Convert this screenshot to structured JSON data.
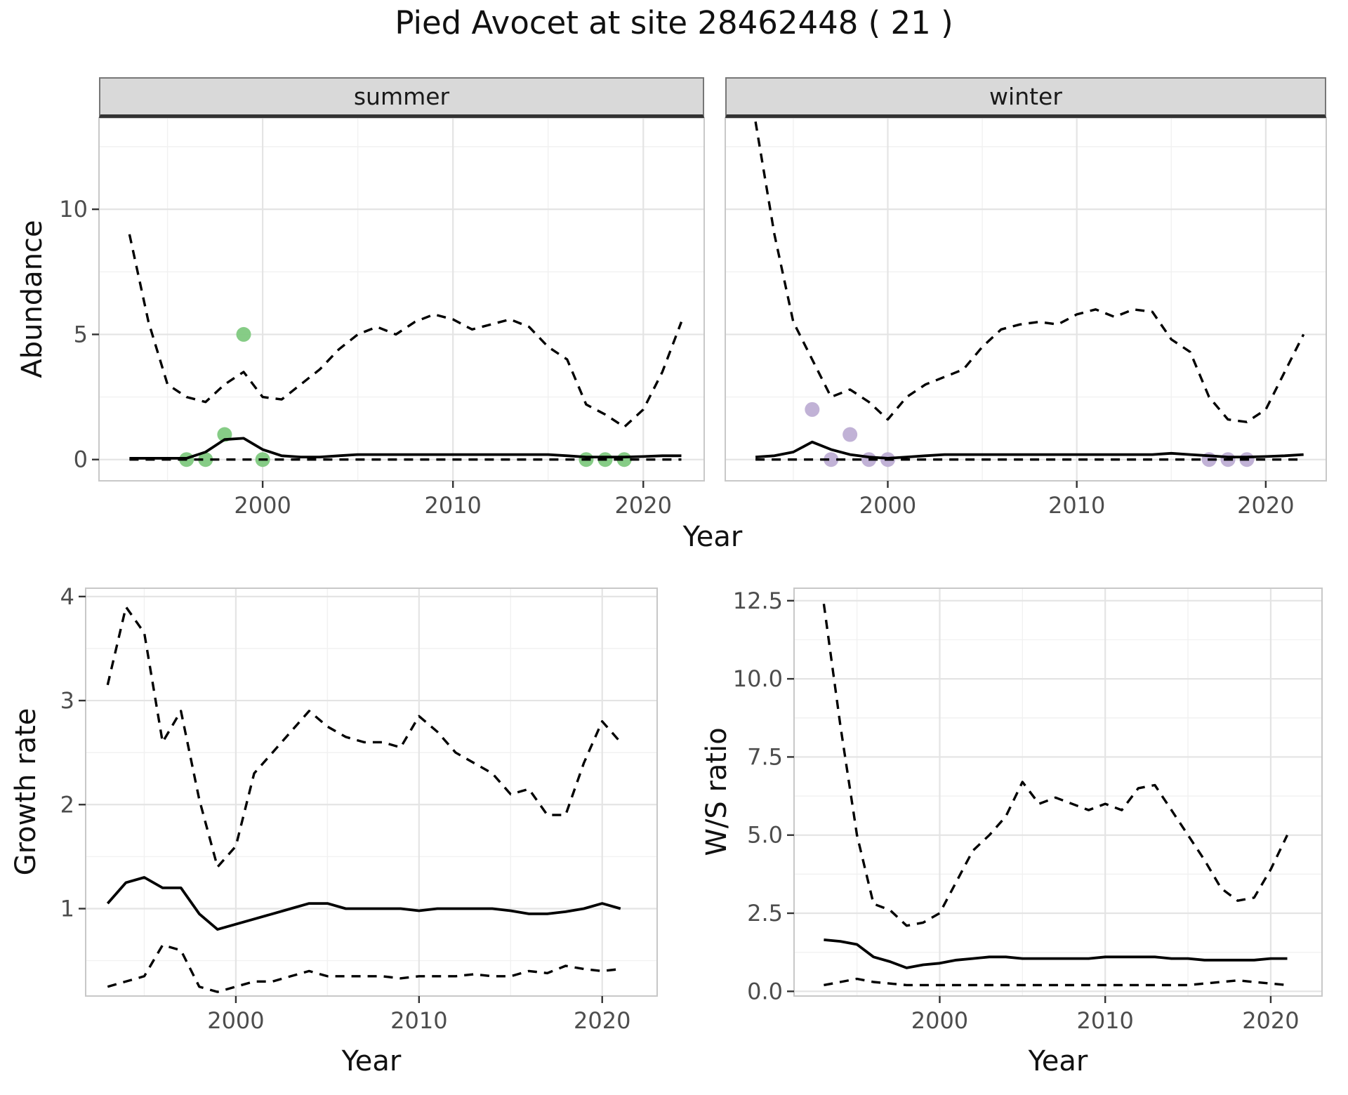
{
  "title": "Pied Avocet at site 28462448 ( 21 )",
  "colors": {
    "summer_points": "#7FC97F",
    "winter_points": "#BEAED4",
    "line": "#000000",
    "grid_major": "#E4E4E4",
    "grid_minor": "#F1F1F1",
    "strip_bg": "#D9D9D9",
    "strip_border": "#333333",
    "panel_border": "#C8C8C8",
    "panel_bg": "#FFFFFF",
    "tick_text": "#4D4D4D",
    "tick_mark": "#333333"
  },
  "chart_data": [
    {
      "id": "abundance-summer",
      "type": "line+scatter",
      "facet": "summer",
      "xlabel": "Year",
      "ylabel": "Abundance",
      "xlim": [
        1991.4,
        2023.2
      ],
      "ylim": [
        -0.85,
        13.65
      ],
      "xticks": [
        2000,
        2010,
        2020
      ],
      "xtick_labels": [
        "2000",
        "2010",
        "2020"
      ],
      "xminor": [
        1995,
        2005,
        2015
      ],
      "yticks": [
        0,
        5,
        10
      ],
      "ytick_labels": [
        "0",
        "5",
        "10"
      ],
      "yminor": [
        2.5,
        7.5,
        12.5
      ],
      "x": [
        1993,
        1994,
        1995,
        1996,
        1997,
        1998,
        1999,
        2000,
        2001,
        2002,
        2003,
        2004,
        2005,
        2006,
        2007,
        2008,
        2009,
        2010,
        2011,
        2012,
        2013,
        2014,
        2015,
        2016,
        2017,
        2018,
        2019,
        2020,
        2021,
        2022
      ],
      "series": [
        {
          "name": "upper_ci",
          "style": "dashed",
          "values": [
            9.0,
            5.5,
            3.0,
            2.5,
            2.3,
            3.0,
            3.5,
            2.5,
            2.4,
            3.0,
            3.6,
            4.4,
            5.0,
            5.3,
            5.0,
            5.5,
            5.8,
            5.6,
            5.2,
            5.4,
            5.6,
            5.3,
            4.5,
            4.0,
            2.2,
            1.8,
            1.3,
            2.0,
            3.5,
            5.5
          ]
        },
        {
          "name": "median",
          "style": "solid",
          "values": [
            0.05,
            0.05,
            0.05,
            0.05,
            0.3,
            0.8,
            0.85,
            0.4,
            0.15,
            0.1,
            0.1,
            0.15,
            0.2,
            0.2,
            0.2,
            0.2,
            0.2,
            0.2,
            0.2,
            0.2,
            0.2,
            0.2,
            0.2,
            0.15,
            0.1,
            0.1,
            0.1,
            0.12,
            0.15,
            0.15
          ]
        },
        {
          "name": "lower_ci",
          "style": "dashed",
          "values": [
            0,
            0,
            0,
            0,
            0,
            0,
            0,
            0,
            0,
            0,
            0,
            0,
            0,
            0,
            0,
            0,
            0,
            0,
            0,
            0,
            0,
            0,
            0,
            0,
            0,
            0,
            0,
            0,
            0,
            0
          ]
        }
      ],
      "points": {
        "x": [
          1996,
          1997,
          1998,
          1999,
          2000,
          2017,
          2018,
          2019
        ],
        "y": [
          0,
          0,
          1,
          5,
          0,
          0,
          0,
          0
        ],
        "color_key": "summer_points"
      }
    },
    {
      "id": "abundance-winter",
      "type": "line+scatter",
      "facet": "winter",
      "xlabel": "Year",
      "ylabel": "Abundance",
      "xlim": [
        1991.4,
        2023.2
      ],
      "ylim": [
        -0.85,
        13.65
      ],
      "xticks": [
        2000,
        2010,
        2020
      ],
      "xtick_labels": [
        "2000",
        "2010",
        "2020"
      ],
      "xminor": [
        1995,
        2005,
        2015
      ],
      "yticks": [
        0,
        5,
        10
      ],
      "ytick_labels": [
        "0",
        "5",
        "10"
      ],
      "yminor": [
        2.5,
        7.5,
        12.5
      ],
      "x": [
        1993,
        1994,
        1995,
        1996,
        1997,
        1998,
        1999,
        2000,
        2001,
        2002,
        2003,
        2004,
        2005,
        2006,
        2007,
        2008,
        2009,
        2010,
        2011,
        2012,
        2013,
        2014,
        2015,
        2016,
        2017,
        2018,
        2019,
        2020,
        2021,
        2022
      ],
      "series": [
        {
          "name": "upper_ci",
          "style": "dashed",
          "values": [
            13.5,
            9.0,
            5.5,
            4.0,
            2.5,
            2.8,
            2.3,
            1.6,
            2.5,
            3.0,
            3.3,
            3.6,
            4.5,
            5.2,
            5.4,
            5.5,
            5.4,
            5.8,
            6.0,
            5.7,
            6.0,
            5.9,
            4.8,
            4.3,
            2.5,
            1.6,
            1.5,
            2.0,
            3.5,
            5.0
          ]
        },
        {
          "name": "median",
          "style": "solid",
          "values": [
            0.1,
            0.15,
            0.3,
            0.7,
            0.4,
            0.2,
            0.1,
            0.05,
            0.1,
            0.15,
            0.2,
            0.2,
            0.2,
            0.2,
            0.2,
            0.2,
            0.2,
            0.2,
            0.2,
            0.2,
            0.2,
            0.2,
            0.25,
            0.2,
            0.15,
            0.1,
            0.1,
            0.12,
            0.15,
            0.2
          ]
        },
        {
          "name": "lower_ci",
          "style": "dashed",
          "values": [
            0,
            0,
            0,
            0,
            0,
            0,
            0,
            0,
            0,
            0,
            0,
            0,
            0,
            0,
            0,
            0,
            0,
            0,
            0,
            0,
            0,
            0,
            0,
            0,
            0,
            0,
            0,
            0,
            0,
            0
          ]
        }
      ],
      "points": {
        "x": [
          1996,
          1997,
          1998,
          1999,
          2000,
          2017,
          2018,
          2019
        ],
        "y": [
          2,
          0,
          1,
          0,
          0,
          0,
          0,
          0
        ],
        "color_key": "winter_points"
      }
    },
    {
      "id": "growth-rate",
      "type": "line",
      "facet": "",
      "xlabel": "Year",
      "ylabel": "Growth rate",
      "xlim": [
        1991.8,
        2023.0
      ],
      "ylim": [
        0.16,
        4.08
      ],
      "xticks": [
        2000,
        2010,
        2020
      ],
      "xtick_labels": [
        "2000",
        "2010",
        "2020"
      ],
      "xminor": [
        1995,
        2005,
        2015
      ],
      "yticks": [
        1,
        2,
        3,
        4
      ],
      "ytick_labels": [
        "1",
        "2",
        "3",
        "4"
      ],
      "yminor": [
        0.5,
        1.5,
        2.5,
        3.5
      ],
      "x": [
        1993,
        1994,
        1995,
        1996,
        1997,
        1998,
        1999,
        2000,
        2001,
        2002,
        2003,
        2004,
        2005,
        2006,
        2007,
        2008,
        2009,
        2010,
        2011,
        2012,
        2013,
        2014,
        2015,
        2016,
        2017,
        2018,
        2019,
        2020,
        2021
      ],
      "series": [
        {
          "name": "upper_ci",
          "style": "dashed",
          "values": [
            3.15,
            3.9,
            3.65,
            2.6,
            2.9,
            2.05,
            1.4,
            1.6,
            2.3,
            2.5,
            2.7,
            2.9,
            2.75,
            2.65,
            2.6,
            2.6,
            2.55,
            2.85,
            2.7,
            2.5,
            2.4,
            2.3,
            2.1,
            2.15,
            1.9,
            1.9,
            2.4,
            2.8,
            2.6
          ]
        },
        {
          "name": "median",
          "style": "solid",
          "values": [
            1.05,
            1.25,
            1.3,
            1.2,
            1.2,
            0.95,
            0.8,
            0.85,
            0.9,
            0.95,
            1.0,
            1.05,
            1.05,
            1.0,
            1.0,
            1.0,
            1.0,
            0.98,
            1.0,
            1.0,
            1.0,
            1.0,
            0.98,
            0.95,
            0.95,
            0.97,
            1.0,
            1.05,
            1.0
          ]
        },
        {
          "name": "lower_ci",
          "style": "dashed",
          "values": [
            0.25,
            0.3,
            0.35,
            0.65,
            0.6,
            0.25,
            0.2,
            0.25,
            0.3,
            0.3,
            0.35,
            0.4,
            0.35,
            0.35,
            0.35,
            0.35,
            0.33,
            0.35,
            0.35,
            0.35,
            0.37,
            0.35,
            0.35,
            0.4,
            0.38,
            0.45,
            0.42,
            0.4,
            0.42
          ]
        }
      ],
      "points": null
    },
    {
      "id": "ws-ratio",
      "type": "line",
      "facet": "",
      "xlabel": "Year",
      "ylabel": "W/S ratio",
      "xlim": [
        1991.2,
        2023.1
      ],
      "ylim": [
        -0.15,
        12.9
      ],
      "xticks": [
        2000,
        2010,
        2020
      ],
      "xtick_labels": [
        "2000",
        "2010",
        "2020"
      ],
      "xminor": [
        1995,
        2005,
        2015
      ],
      "yticks": [
        0,
        2.5,
        5,
        7.5,
        10,
        12.5
      ],
      "ytick_labels": [
        "0.0",
        "2.5",
        "5.0",
        "7.5",
        "10.0",
        "12.5"
      ],
      "yminor": [
        1.25,
        3.75,
        6.25,
        8.75,
        11.25
      ],
      "x": [
        1993,
        1994,
        1995,
        1996,
        1997,
        1998,
        1999,
        2000,
        2001,
        2002,
        2003,
        2004,
        2005,
        2006,
        2007,
        2008,
        2009,
        2010,
        2011,
        2012,
        2013,
        2014,
        2015,
        2016,
        2017,
        2018,
        2019,
        2020,
        2021
      ],
      "series": [
        {
          "name": "upper_ci",
          "style": "dashed",
          "values": [
            12.4,
            8.5,
            5.0,
            2.8,
            2.6,
            2.1,
            2.2,
            2.5,
            3.5,
            4.5,
            5.0,
            5.6,
            6.7,
            6.0,
            6.2,
            6.0,
            5.8,
            6.0,
            5.8,
            6.5,
            6.6,
            5.8,
            5.0,
            4.2,
            3.3,
            2.9,
            3.0,
            3.9,
            5.0
          ]
        },
        {
          "name": "median",
          "style": "solid",
          "values": [
            1.65,
            1.6,
            1.5,
            1.1,
            0.95,
            0.75,
            0.85,
            0.9,
            1.0,
            1.05,
            1.1,
            1.1,
            1.05,
            1.05,
            1.05,
            1.05,
            1.05,
            1.1,
            1.1,
            1.1,
            1.1,
            1.05,
            1.05,
            1.0,
            1.0,
            1.0,
            1.0,
            1.05,
            1.05
          ]
        },
        {
          "name": "lower_ci",
          "style": "dashed",
          "values": [
            0.2,
            0.3,
            0.4,
            0.3,
            0.25,
            0.2,
            0.2,
            0.2,
            0.2,
            0.2,
            0.2,
            0.2,
            0.2,
            0.2,
            0.2,
            0.2,
            0.2,
            0.2,
            0.2,
            0.2,
            0.2,
            0.2,
            0.2,
            0.25,
            0.3,
            0.35,
            0.3,
            0.25,
            0.2
          ]
        }
      ],
      "points": null
    }
  ]
}
